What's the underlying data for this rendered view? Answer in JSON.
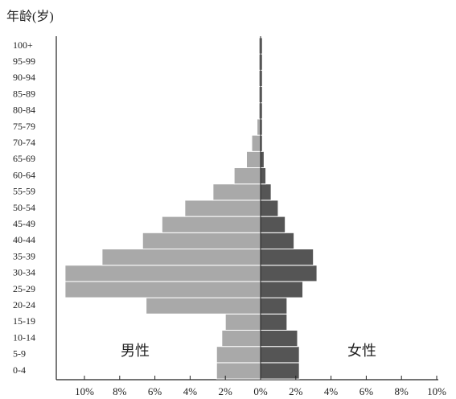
{
  "chart_data": {
    "type": "pyramid",
    "y_axis_label": "年龄(岁)",
    "categories": [
      "0-4",
      "5-9",
      "10-14",
      "15-19",
      "20-24",
      "25-29",
      "30-34",
      "35-39",
      "40-44",
      "45-49",
      "50-54",
      "55-59",
      "60-64",
      "65-69",
      "70-74",
      "75-79",
      "80-84",
      "85-89",
      "90-94",
      "95-99",
      "100+"
    ],
    "series": [
      {
        "name": "男性",
        "color": "#a9a9a9",
        "side": "left",
        "values": [
          2.5,
          2.5,
          2.2,
          2.0,
          6.5,
          11.1,
          11.1,
          9.0,
          6.7,
          5.6,
          4.3,
          2.7,
          1.5,
          0.8,
          0.5,
          0.2,
          0.1,
          0.1,
          0.1,
          0.1,
          0.1
        ]
      },
      {
        "name": "女性",
        "color": "#555555",
        "side": "right",
        "values": [
          2.2,
          2.2,
          2.1,
          1.5,
          1.5,
          2.4,
          3.2,
          3.0,
          1.9,
          1.4,
          1.0,
          0.6,
          0.3,
          0.2,
          0.1,
          0.1,
          0.1,
          0.1,
          0.1,
          0.1,
          0.1
        ]
      }
    ],
    "xlim": [
      -10,
      10
    ],
    "xticks": [
      {
        "value": -10,
        "label": "10%"
      },
      {
        "value": -8,
        "label": "8%"
      },
      {
        "value": -6,
        "label": "6%"
      },
      {
        "value": -4,
        "label": "4%"
      },
      {
        "value": -2,
        "label": "2%"
      },
      {
        "value": 0,
        "label": "0%"
      },
      {
        "value": 2,
        "label": "2%"
      },
      {
        "value": 4,
        "label": "4%"
      },
      {
        "value": 6,
        "label": "6%"
      },
      {
        "value": 8,
        "label": "8%"
      },
      {
        "value": 10,
        "label": "10%"
      }
    ]
  }
}
